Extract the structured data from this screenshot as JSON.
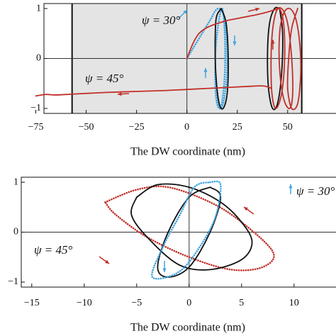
{
  "chart_data": [
    {
      "type": "line",
      "xlabel": "The DW coordinate (nm)",
      "xlim": [
        -78,
        74
      ],
      "ylim": [
        -1.1,
        1.1
      ],
      "xticks": [
        {
          "value": -75,
          "label": "−75"
        },
        {
          "value": -50,
          "label": "−50"
        },
        {
          "value": -25,
          "label": "−25"
        },
        0,
        25,
        50
      ],
      "yticks": [
        1,
        0,
        {
          "value": -1,
          "label": "−1"
        }
      ],
      "bounds": [
        -57,
        57
      ],
      "annotations": [
        {
          "text": "ψ = 30°",
          "color": "#3fa4e0"
        },
        {
          "text": "ψ = 45°",
          "color": "#c0302a"
        }
      ],
      "series": [
        {
          "color": "#3fa4e0",
          "style": "dotted",
          "x": [
            0,
            3,
            6,
            9,
            12,
            14,
            16,
            18,
            19.5,
            20,
            19.5,
            18,
            16,
            14.5,
            14,
            14.5,
            16,
            17.5,
            18.5,
            19,
            18.5,
            17,
            15.5,
            14.5
          ],
          "values": [
            0,
            0.2,
            0.4,
            0.6,
            0.8,
            0.95,
            1.0,
            0.9,
            0.5,
            0,
            -0.5,
            -0.9,
            -1.0,
            -0.8,
            -0.3,
            0.3,
            0.8,
            1.0,
            0.7,
            0.1,
            -0.5,
            -0.95,
            -0.9,
            -0.5
          ]
        },
        {
          "color": "#111111",
          "style": "solid",
          "x": [
            17,
            19.5,
            20.5,
            20,
            18,
            16,
            14.5,
            14,
            14.5,
            17
          ],
          "values": [
            1,
            0.7,
            0,
            -0.7,
            -1,
            -0.9,
            -0.4,
            0.2,
            0.8,
            1
          ]
        },
        {
          "color": "#111111",
          "style": "solid",
          "x": [
            46,
            47.5,
            47,
            45,
            42.5,
            40.5,
            40,
            41,
            43.5,
            46
          ],
          "values": [
            1,
            0.5,
            -0.3,
            -0.9,
            -1,
            -0.6,
            0.1,
            0.7,
            1,
            1
          ]
        },
        {
          "color": "#c0302a",
          "style": "solid",
          "x": [
            0,
            3,
            6,
            10,
            15,
            20,
            25,
            30,
            35,
            40,
            44,
            46,
            48,
            48.5,
            47,
            44,
            42,
            42,
            44,
            47,
            50,
            52,
            52.5,
            51,
            48,
            46,
            46,
            48,
            51,
            54,
            56,
            56.5,
            55,
            52,
            50,
            50.5,
            52,
            55
          ],
          "values": [
            0,
            0.3,
            0.5,
            0.62,
            0.7,
            0.76,
            0.8,
            0.84,
            0.88,
            0.93,
            0.98,
            1,
            0.7,
            0,
            -0.7,
            -1,
            -0.6,
            0.3,
            0.9,
            1,
            0.7,
            0,
            -0.7,
            -1,
            -0.8,
            -0.2,
            0.5,
            0.9,
            1,
            0.8,
            0.3,
            -0.3,
            -0.9,
            -1,
            -0.6,
            0,
            0.6,
            1
          ]
        },
        {
          "color": "#c0302a",
          "style": "solid",
          "x": [
            -75,
            -70,
            -65,
            -55,
            -40,
            -25,
            -10,
            0,
            10,
            20,
            30,
            38,
            42
          ],
          "values": [
            -0.75,
            -0.72,
            -0.73,
            -0.71,
            -0.68,
            -0.66,
            -0.64,
            -0.62,
            -0.6,
            -0.58,
            -0.56,
            -0.55,
            -0.6
          ]
        }
      ]
    },
    {
      "type": "line",
      "xlabel": "The DW coordinate (nm)",
      "xlim": [
        -16,
        14
      ],
      "ylim": [
        -1.1,
        1.1
      ],
      "xticks": [
        {
          "value": -15,
          "label": "−15"
        },
        {
          "value": -10,
          "label": "−10"
        },
        {
          "value": -5,
          "label": "−5"
        },
        0,
        5,
        10
      ],
      "yticks": [
        1,
        0,
        {
          "value": -1,
          "label": "−1"
        }
      ],
      "annotations": [
        {
          "text": "ψ = 30°",
          "color": "#3fa4e0"
        },
        {
          "text": "ψ = 45°",
          "color": "#c0302a"
        }
      ],
      "series": [
        {
          "color": "#c0302a",
          "style": "dotted",
          "x": [
            -8,
            -5,
            -2,
            2,
            5,
            8,
            7,
            4,
            0,
            -4,
            -7,
            -8
          ],
          "values": [
            0.6,
            0.85,
            0.9,
            0.6,
            0.2,
            -0.4,
            -0.7,
            -0.75,
            -0.5,
            -0.1,
            0.35,
            0.6
          ]
        },
        {
          "color": "#111111",
          "style": "solid",
          "x": [
            -5,
            -3,
            0,
            3,
            5,
            6,
            5,
            2,
            -1,
            -4,
            -5.5,
            -5
          ],
          "values": [
            0.7,
            0.95,
            0.9,
            0.6,
            0.2,
            -0.2,
            -0.55,
            -0.75,
            -0.65,
            -0.1,
            0.35,
            0.7
          ]
        },
        {
          "color": "#111111",
          "style": "solid",
          "x": [
            2,
            3,
            2,
            0,
            -2,
            -3,
            -2,
            0,
            2
          ],
          "values": [
            0.9,
            0.7,
            0,
            -0.7,
            -0.9,
            -0.7,
            0,
            0.7,
            0.9
          ]
        },
        {
          "color": "#3fa4e0",
          "style": "dotted",
          "x": [
            2,
            3,
            2.5,
            1,
            -1,
            -3.5,
            -2.5,
            -1,
            0.5,
            2
          ],
          "values": [
            1,
            0.95,
            0.3,
            -0.3,
            -0.8,
            -0.9,
            -0.3,
            0.3,
            0.9,
            1
          ]
        }
      ]
    }
  ]
}
